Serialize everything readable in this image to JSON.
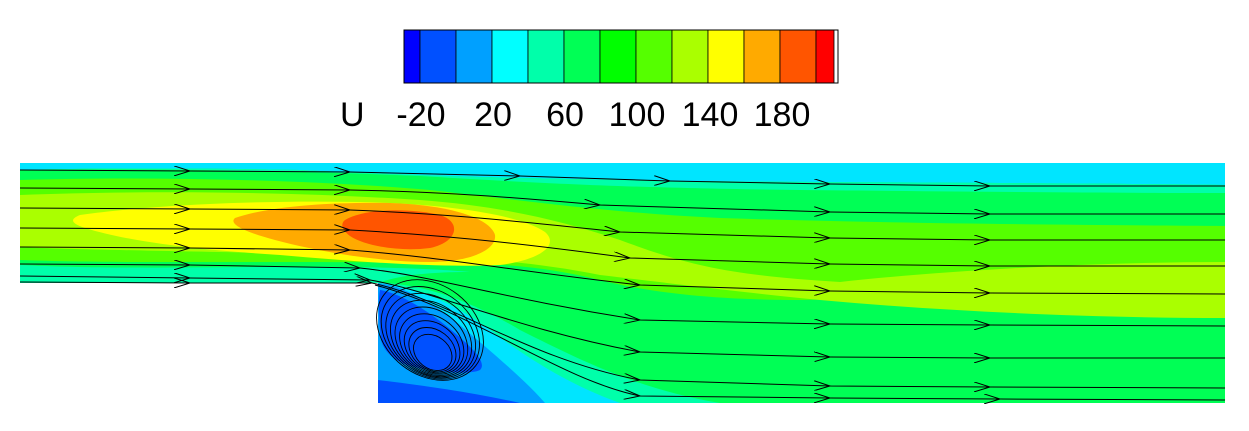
{
  "legend": {
    "variable": "U",
    "tick_labels": [
      "-20",
      "20",
      "60",
      "100",
      "140",
      "180"
    ],
    "colors": [
      "#0000ff",
      "#0050ff",
      "#00a0ff",
      "#00ffff",
      "#00ffaa",
      "#00ff55",
      "#00ff00",
      "#55ff00",
      "#aaff00",
      "#ffff00",
      "#ffaa00",
      "#ff5500",
      "#ff0000"
    ]
  },
  "field_colors": {
    "wall_region": "#00e5ff",
    "outer_band": "#00ffaa",
    "main_band": "#00ff55",
    "core_band": "#55ff00",
    "fast_band": "#aaff00",
    "jet_core": "#ffff00",
    "jet_peak": "#ffaa00",
    "jet_max": "#ff5500",
    "recirc_outer": "#00a0ff",
    "recirc_inner": "#0050ff"
  }
}
